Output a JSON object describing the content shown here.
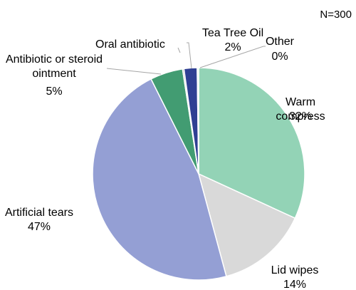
{
  "chart_data": {
    "type": "pie",
    "note": "N=300",
    "slices": [
      {
        "name": "Warm compress",
        "value": 32,
        "value_label": "32%",
        "color": "#93d3b6"
      },
      {
        "name": "Lid wipes",
        "value": 14,
        "value_label": "14%",
        "color": "#d9d9d9"
      },
      {
        "name": "Artificial tears",
        "value": 47,
        "value_label": "47%",
        "color": "#949fd4"
      },
      {
        "name": "Antibiotic or steroid ointment",
        "value": 5,
        "value_label": "5%",
        "color": "#429c72"
      },
      {
        "name": "Oral antibiotic",
        "value": 0,
        "value_label": "",
        "color": "#a5a5a5"
      },
      {
        "name": "Tea Tree Oil",
        "value": 2,
        "value_label": "2%",
        "color": "#2f3f93"
      },
      {
        "name": "Other",
        "value": 0,
        "value_label": "0%",
        "color": "#c8e7d8"
      }
    ]
  }
}
